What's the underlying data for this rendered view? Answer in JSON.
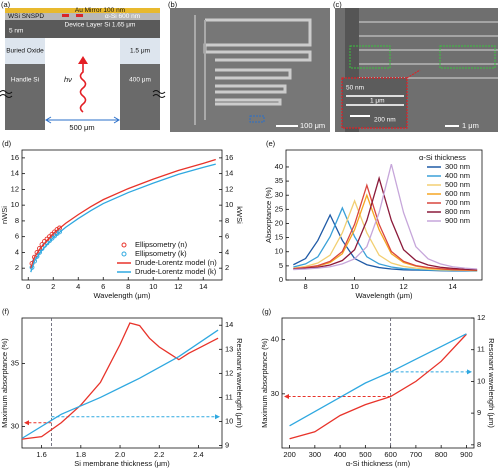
{
  "panel_a": {
    "label": "(a)",
    "mirror": "Au Mirror 100 nm",
    "snspd": "WSi SNSPD",
    "asi": "α-Si 600 nm",
    "wsi_thickness": "5 nm",
    "device": "Device Layer Si 1.65 μm",
    "oxide": "Buried Oxide",
    "oxide_thickness": "1.5 μm",
    "handle": "Handle Si",
    "handle_thickness": "400 μm",
    "photon": "hν",
    "width": "500 μm"
  },
  "panel_b": {
    "label": "(b)",
    "scale": "100 μm"
  },
  "panel_c": {
    "label": "(c)",
    "inset_height": "50 nm",
    "inset_width": "1 μm",
    "inset_scale": "200 nm",
    "scale": "1 μm"
  },
  "chart_data": [
    {
      "type": "line",
      "panel": "(d)",
      "xlabel": "Wavelength (μm)",
      "ylabel": "nWSi",
      "y2label": "kWSi",
      "xlim": [
        -0.5,
        15.5
      ],
      "xticks": [
        0,
        2,
        4,
        6,
        8,
        10,
        12,
        14
      ],
      "ylim": [
        0.5,
        17
      ],
      "yticks": [
        2,
        4,
        6,
        8,
        10,
        12,
        14,
        16
      ],
      "y2lim": [
        0.5,
        17
      ],
      "y2ticks": [
        2,
        4,
        6,
        8,
        10,
        12,
        14,
        16
      ],
      "legend": "lower right",
      "series": [
        {
          "name": "Ellipsometry (n)",
          "color": "#e8332a",
          "mode": "markers",
          "x": [
            0.3,
            0.5,
            0.7,
            0.9,
            1.1,
            1.3,
            1.5,
            1.7,
            1.9,
            2.1,
            2.3,
            2.5
          ],
          "values": [
            2.6,
            3.4,
            4.0,
            4.5,
            5.0,
            5.4,
            5.7,
            6.0,
            6.3,
            6.6,
            6.9,
            7.1
          ]
        },
        {
          "name": "Ellipsometry (k)",
          "color": "#2fa8e0",
          "mode": "markers",
          "axis": "y2",
          "x": [
            0.3,
            0.5,
            0.7,
            0.9,
            1.1,
            1.3,
            1.5,
            1.7,
            1.9,
            2.1,
            2.3,
            2.5
          ],
          "values": [
            2.1,
            2.9,
            3.5,
            4.0,
            4.5,
            4.9,
            5.2,
            5.5,
            5.8,
            6.1,
            6.4,
            6.6
          ]
        },
        {
          "name": "Drude-Lorentz model (n)",
          "color": "#e8332a",
          "mode": "line",
          "x": [
            0.2,
            0.5,
            1,
            2,
            3,
            4,
            5,
            6,
            8,
            10,
            12,
            14,
            15
          ],
          "values": [
            2.0,
            3.4,
            4.6,
            6.4,
            7.7,
            8.8,
            9.8,
            10.7,
            12.1,
            13.3,
            14.4,
            15.3,
            15.8
          ]
        },
        {
          "name": "Drude-Lorentz model (k)",
          "color": "#2fa8e0",
          "mode": "line",
          "axis": "y2",
          "x": [
            0.2,
            0.5,
            1,
            2,
            3,
            4,
            5,
            6,
            8,
            10,
            12,
            14,
            15
          ],
          "values": [
            1.5,
            2.9,
            4.1,
            5.9,
            7.2,
            8.3,
            9.3,
            10.2,
            11.6,
            12.8,
            13.9,
            14.8,
            15.2
          ]
        }
      ]
    },
    {
      "type": "line",
      "panel": "(e)",
      "xlabel": "Wavelength (μm)",
      "ylabel": "Absorptance (%)",
      "xlim": [
        7.2,
        15.2
      ],
      "xticks": [
        8,
        10,
        12,
        14
      ],
      "ylim": [
        0,
        46
      ],
      "yticks": [
        0,
        5,
        10,
        15,
        20,
        25,
        30,
        35,
        40
      ],
      "legend": "upper right",
      "legend_title": "α-Si thickness",
      "x": [
        7.5,
        8,
        8.5,
        9,
        9.5,
        10,
        10.5,
        11,
        11.5,
        12,
        12.5,
        13,
        13.5,
        14,
        14.5,
        15
      ],
      "series": [
        {
          "name": "300 nm",
          "color": "#1f5aa6",
          "mode": "line",
          "values": [
            5.4,
            7.6,
            14.0,
            23,
            14.0,
            7.6,
            5.4,
            4.4,
            3.9,
            3.6,
            3.5,
            3.4,
            3.3,
            3.2,
            3.2,
            3.2
          ]
        },
        {
          "name": "400 nm",
          "color": "#3aa0d8",
          "mode": "line",
          "values": [
            4.6,
            5.7,
            8.2,
            15.3,
            25.5,
            15.3,
            8.2,
            5.7,
            4.6,
            4.0,
            3.7,
            3.5,
            3.4,
            3.3,
            3.3,
            3.2
          ]
        },
        {
          "name": "500 nm",
          "color": "#f2cf72",
          "mode": "line",
          "values": [
            4.2,
            4.8,
            6.0,
            8.8,
            16.7,
            28,
            16.7,
            8.8,
            6.0,
            4.8,
            4.2,
            3.8,
            3.6,
            3.5,
            3.4,
            3.3
          ]
        },
        {
          "name": "600 nm",
          "color": "#f5a623",
          "mode": "line",
          "values": [
            3.9,
            4.2,
            4.9,
            6.2,
            9.3,
            17.8,
            30,
            17.8,
            9.3,
            6.2,
            4.9,
            4.2,
            3.9,
            3.6,
            3.5,
            3.4
          ]
        },
        {
          "name": "700 nm",
          "color": "#d9453d",
          "mode": "line",
          "values": [
            4.0,
            4.4,
            5.1,
            6.6,
            10.1,
            19.7,
            33.5,
            19.7,
            10.1,
            6.6,
            5.1,
            4.4,
            4.0,
            3.7,
            3.6,
            3.5
          ]
        },
        {
          "name": "800 nm",
          "color": "#8b1a3a",
          "mode": "line",
          "values": [
            3.8,
            4.1,
            4.5,
            5.3,
            6.9,
            10.7,
            21.1,
            36,
            21.1,
            10.7,
            6.9,
            5.3,
            4.5,
            4.1,
            3.8,
            3.6
          ]
        },
        {
          "name": "900 nm",
          "color": "#c6a6da",
          "mode": "line",
          "values": [
            3.7,
            3.9,
            4.2,
            4.7,
            5.7,
            7.5,
            11.8,
            23.8,
            41,
            23.8,
            11.8,
            7.5,
            5.7,
            4.7,
            4.2,
            3.9
          ]
        }
      ]
    },
    {
      "type": "line",
      "panel": "(f)",
      "xlabel": "Si membrane thickness (μm)",
      "ylabel": "Maximum absorptance (%)",
      "y2label": "Resonant wavelength (μm)",
      "xlim": [
        1.5,
        2.52
      ],
      "xticks": [
        1.6,
        1.8,
        {
          "value": 2,
          "label": "2.0"
        },
        2.2,
        2.4
      ],
      "ylim": [
        28.3,
        38.6
      ],
      "yticks": [
        30,
        35
      ],
      "y2lim": [
        8.9,
        14.3
      ],
      "y2ticks": [
        9,
        10,
        11,
        12,
        13,
        14
      ],
      "vline": 1.65,
      "arrow_left": 30.3,
      "arrow_right": 10.2,
      "series": [
        {
          "color": "#e8332a",
          "mode": "line",
          "x": [
            1.5,
            1.6,
            1.7,
            1.8,
            1.9,
            2.0,
            2.05,
            2.1,
            2.15,
            2.2,
            2.25,
            2.3,
            2.35,
            2.4,
            2.5
          ],
          "values": [
            29.0,
            29.2,
            30.3,
            31.7,
            33.5,
            36.5,
            38.2,
            38.0,
            37.0,
            36.3,
            35.8,
            35.3,
            35.8,
            36.2,
            37.0
          ]
        },
        {
          "color": "#2fa8e0",
          "mode": "line",
          "axis": "y2",
          "x": [
            1.5,
            1.7,
            1.9,
            2.1,
            2.3,
            2.5
          ],
          "values": [
            9.3,
            10.3,
            11.0,
            11.8,
            12.7,
            13.8
          ]
        }
      ]
    },
    {
      "type": "line",
      "panel": "(g)",
      "xlabel": "α-Si thickness (nm)",
      "ylabel": "Maximum absorptance (%)",
      "y2label": "Resonant wavelength (μm)",
      "xlim": [
        170,
        930
      ],
      "xticks": [
        200,
        300,
        400,
        500,
        600,
        700,
        800,
        900
      ],
      "ylim": [
        20,
        44
      ],
      "yticks": [
        30,
        40
      ],
      "y2lim": [
        7.9,
        12
      ],
      "y2ticks": [
        8,
        9,
        10,
        11,
        12
      ],
      "vline": 600,
      "arrow_left": 29.5,
      "arrow_right": 10.3,
      "x": [
        200,
        300,
        400,
        500,
        600,
        700,
        800,
        900
      ],
      "series": [
        {
          "color": "#e8332a",
          "mode": "line",
          "values": [
            21.7,
            23,
            26.0,
            28,
            29.5,
            32.3,
            36,
            41
          ]
        },
        {
          "color": "#2fa8e0",
          "mode": "line",
          "axis": "y2",
          "values": [
            8.6,
            9.05,
            9.5,
            9.95,
            10.3,
            10.7,
            11.1,
            11.5
          ]
        }
      ]
    }
  ]
}
